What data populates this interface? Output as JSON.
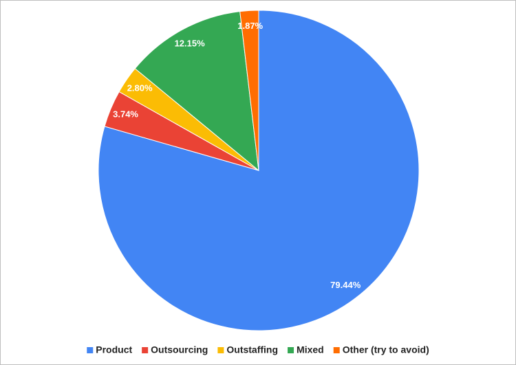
{
  "chart_data": {
    "type": "pie",
    "categories": [
      "Product",
      "Outsourcing",
      "Outstaffing",
      "Mixed",
      "Other (try to avoid)"
    ],
    "values": [
      79.44,
      3.74,
      2.8,
      12.15,
      1.87
    ],
    "value_labels": [
      "79.44%",
      "3.74%",
      "2.80%",
      "12.15%",
      "1.87%"
    ],
    "colors": [
      "#4285f4",
      "#ea4335",
      "#fbbc04",
      "#34a853",
      "#ff6d01"
    ],
    "legend": "bottom"
  }
}
